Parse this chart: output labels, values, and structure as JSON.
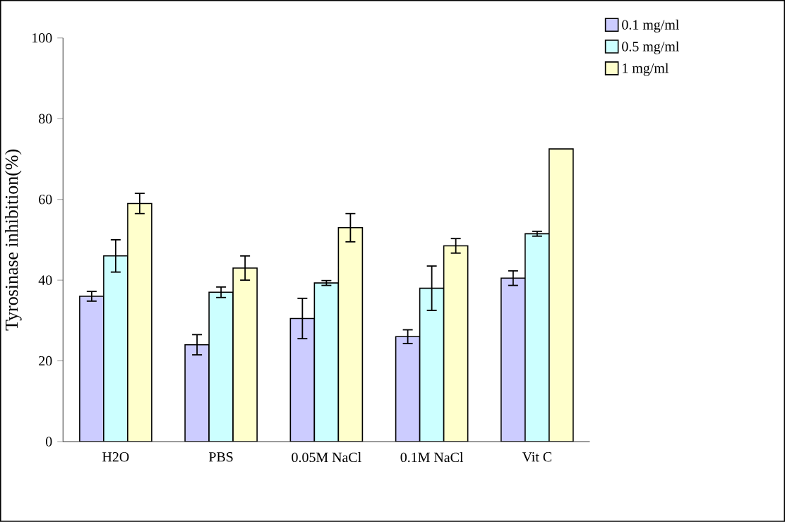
{
  "chart_data": {
    "type": "bar",
    "ylabel": "Tyrosinase inhibition(%)",
    "categories": [
      "H2O",
      "PBS",
      "0.05M NaCl",
      "0.1M NaCl",
      "Vit C"
    ],
    "series": [
      {
        "name": "0.1 mg/ml",
        "color": "#ccccff",
        "values": [
          36,
          24,
          30.5,
          26,
          40.5
        ],
        "errors": [
          1.2,
          2.5,
          5,
          1.7,
          1.8
        ]
      },
      {
        "name": "0.5 mg/ml",
        "color": "#ccffff",
        "values": [
          46,
          37,
          39.3,
          38,
          51.5
        ],
        "errors": [
          4,
          1.3,
          0.6,
          5.5,
          0.6
        ]
      },
      {
        "name": "1 mg/ml",
        "color": "#ffffcc",
        "values": [
          59,
          43,
          53,
          48.5,
          72.5
        ],
        "errors": [
          2.5,
          3,
          3.5,
          1.8,
          null
        ]
      }
    ],
    "ylim": [
      0,
      100
    ],
    "yticks": [
      0,
      20,
      40,
      60,
      80,
      100
    ],
    "grid": false,
    "legend": "top right"
  }
}
